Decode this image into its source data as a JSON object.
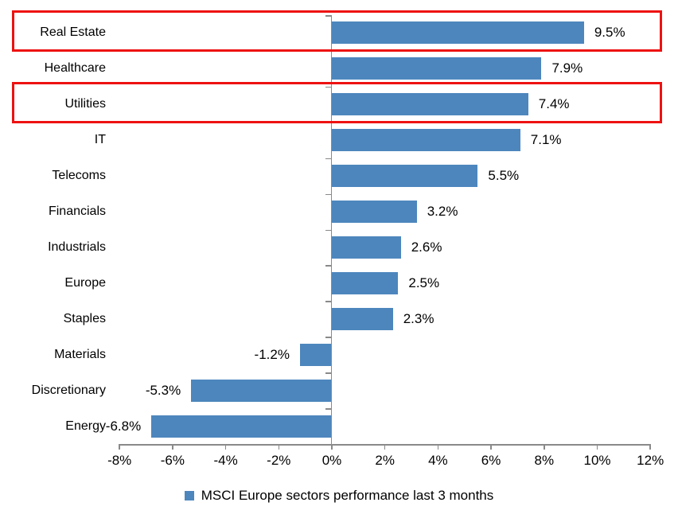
{
  "chart_data": {
    "type": "bar",
    "orientation": "horizontal",
    "title": "",
    "categories": [
      "Real Estate",
      "Healthcare",
      "Utilities",
      "IT",
      "Telecoms",
      "Financials",
      "Industrials",
      "Europe",
      "Staples",
      "Materials",
      "Discretionary",
      "Energy"
    ],
    "values": [
      9.5,
      7.9,
      7.4,
      7.1,
      5.5,
      3.2,
      2.6,
      2.5,
      2.3,
      -1.2,
      -5.3,
      -6.8
    ],
    "value_labels": [
      "9.5%",
      "7.9%",
      "7.4%",
      "7.1%",
      "5.5%",
      "3.2%",
      "2.6%",
      "2.5%",
      "2.3%",
      "-1.2%",
      "-5.3%",
      "-6.8%"
    ],
    "x_tick_labels": [
      "-8%",
      "-6%",
      "-4%",
      "-2%",
      "0%",
      "2%",
      "4%",
      "6%",
      "8%",
      "10%",
      "12%"
    ],
    "xlim": [
      -8,
      12
    ],
    "xlabel": "",
    "ylabel": "",
    "grid": false,
    "legend": "MSCI Europe sectors performance last 3 months",
    "legend_position": "bottom-center",
    "bar_color": "#4d86bd",
    "axis_color": "#898989",
    "highlight_box_color": "#ee1111",
    "highlighted_categories": [
      "Real Estate",
      "Utilities"
    ]
  }
}
